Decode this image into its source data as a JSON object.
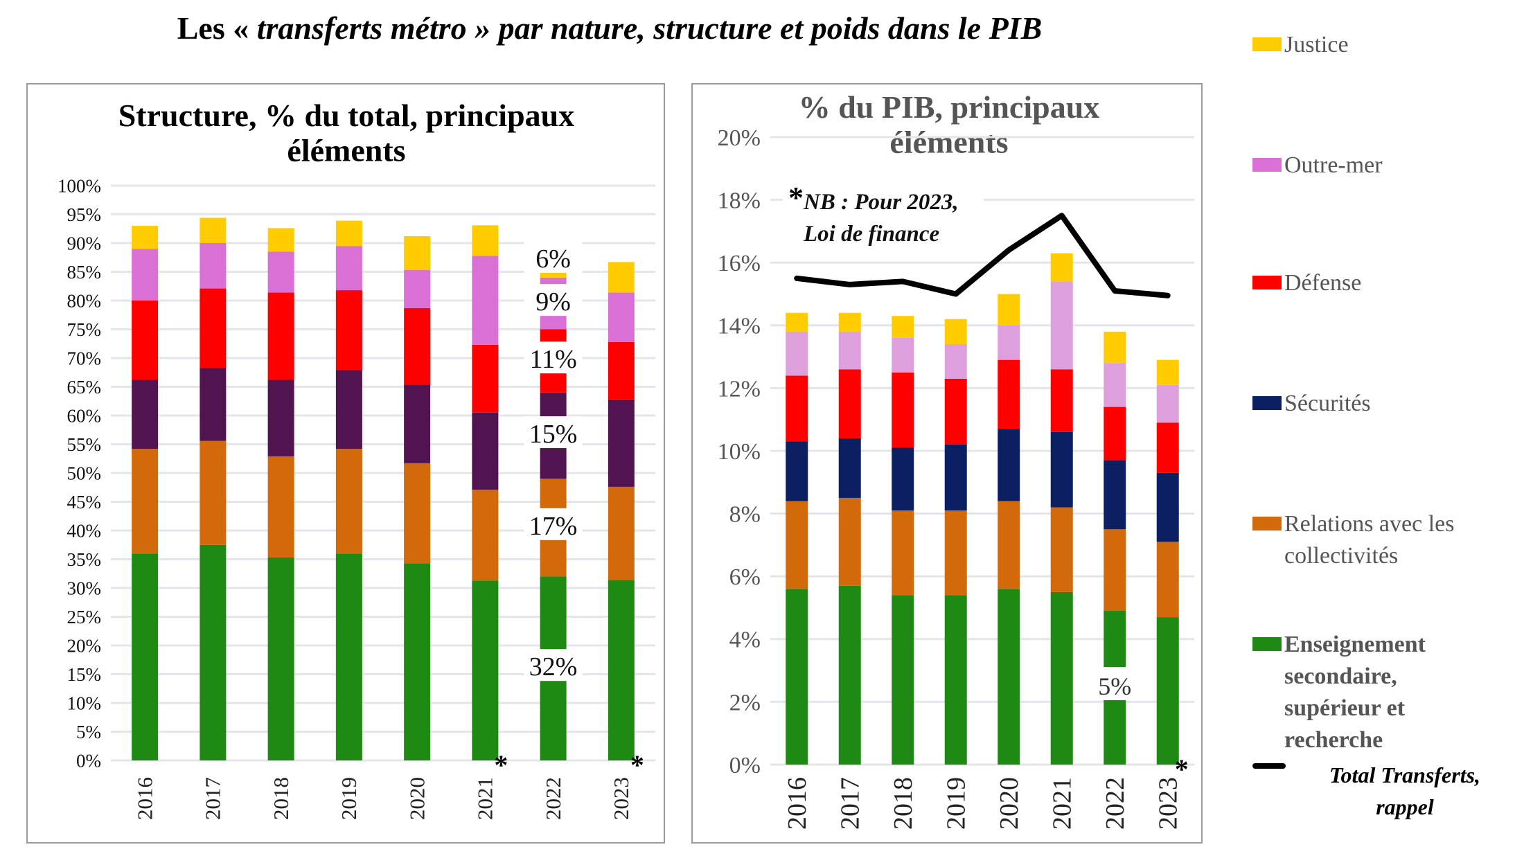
{
  "title": {
    "prefix": "Les «",
    "italic": " transferts métro ",
    "suffix": "» par nature, structure et poids dans le PIB"
  },
  "legend": {
    "items": [
      {
        "key": "justice",
        "label": "Justice",
        "color": "#FFCC00"
      },
      {
        "key": "outremer",
        "label": "Outre-mer",
        "color": "#DA70D6"
      },
      {
        "key": "defense",
        "label": "Défense",
        "color": "#FF0000"
      },
      {
        "key": "securites",
        "label": "Sécurités",
        "color": "#0D1F63"
      },
      {
        "key": "relations",
        "label": "Relations avec les collectivités",
        "color": "#D2690A"
      },
      {
        "key": "enseignement",
        "label": "Enseignement secondaire, supérieur et recherche",
        "color": "#1F8A13"
      }
    ],
    "total_label": "Total Transferts, rappel"
  },
  "chart_data": [
    {
      "type": "bar",
      "stacked": true,
      "title": "Structure, % du total, principaux éléments",
      "categories": [
        "2016",
        "2017",
        "2018",
        "2019",
        "2020",
        "2021",
        "2022",
        "2023"
      ],
      "category_markers": {
        "2021": "*",
        "2023": "*"
      },
      "ylim": [
        0,
        100
      ],
      "yticks": [
        "0%",
        "5%",
        "10%",
        "15%",
        "20%",
        "25%",
        "30%",
        "35%",
        "40%",
        "45%",
        "50%",
        "55%",
        "60%",
        "65%",
        "70%",
        "75%",
        "80%",
        "85%",
        "90%",
        "95%",
        "100%"
      ],
      "grid": true,
      "series_colors_note": "Sécurités shown in dark purple in this panel",
      "series": [
        {
          "name": "Enseignement secondaire, supérieur et recherche",
          "color": "#1F8A13",
          "values": [
            36.0,
            37.5,
            35.3,
            36.0,
            34.3,
            31.3,
            32.0,
            31.4
          ]
        },
        {
          "name": "Relations avec les collectivités",
          "color": "#D2690A",
          "values": [
            18.2,
            18.1,
            17.6,
            18.2,
            17.4,
            15.8,
            17.0,
            16.2
          ]
        },
        {
          "name": "Sécurités",
          "color": "#521450",
          "values": [
            12.0,
            12.7,
            13.3,
            13.7,
            13.7,
            13.4,
            15.0,
            15.2
          ]
        },
        {
          "name": "Défense",
          "color": "#FF0000",
          "values": [
            13.8,
            13.8,
            15.2,
            13.9,
            13.3,
            11.8,
            11.0,
            10.0
          ]
        },
        {
          "name": "Outre-mer",
          "color": "#DA70D6",
          "values": [
            9.0,
            7.9,
            7.1,
            7.7,
            6.6,
            15.5,
            9.0,
            8.6
          ]
        },
        {
          "name": "Justice",
          "color": "#FFCC00",
          "values": [
            4.0,
            4.4,
            4.1,
            4.4,
            5.9,
            5.3,
            6.0,
            5.3
          ]
        }
      ],
      "data_labels": {
        "category": "2022",
        "labels": [
          "32%",
          "17%",
          "15%",
          "11%",
          "9%",
          "6%"
        ]
      }
    },
    {
      "type": "bar",
      "stacked": true,
      "title": "% du PIB, principaux éléments",
      "categories": [
        "2016",
        "2017",
        "2018",
        "2019",
        "2020",
        "2021",
        "2022",
        "2023"
      ],
      "category_markers": {
        "2023": "*"
      },
      "ylim": [
        0,
        20
      ],
      "yticks": [
        "0%",
        "2%",
        "4%",
        "6%",
        "8%",
        "10%",
        "12%",
        "14%",
        "16%",
        "18%",
        "20%"
      ],
      "grid": true,
      "series": [
        {
          "name": "Enseignement secondaire, supérieur et recherche",
          "color": "#1F8A13",
          "values": [
            5.6,
            5.7,
            5.4,
            5.4,
            5.6,
            5.5,
            4.9,
            4.7
          ]
        },
        {
          "name": "Relations avec les collectivités",
          "color": "#D2690A",
          "values": [
            2.8,
            2.8,
            2.7,
            2.7,
            2.8,
            2.7,
            2.6,
            2.4
          ]
        },
        {
          "name": "Sécurités",
          "color": "#0D1F63",
          "values": [
            1.9,
            1.9,
            2.0,
            2.1,
            2.3,
            2.4,
            2.2,
            2.2
          ]
        },
        {
          "name": "Défense",
          "color": "#FF0000",
          "values": [
            2.1,
            2.2,
            2.4,
            2.1,
            2.2,
            2.0,
            1.7,
            1.6
          ]
        },
        {
          "name": "Outre-mer",
          "color": "#DDA0DD",
          "values": [
            1.4,
            1.2,
            1.1,
            1.1,
            1.1,
            2.8,
            1.4,
            1.2
          ]
        },
        {
          "name": "Justice",
          "color": "#FFCC00",
          "values": [
            0.6,
            0.6,
            0.7,
            0.8,
            1.0,
            0.9,
            1.0,
            0.8
          ]
        }
      ],
      "line": {
        "name": "Total Transferts, rappel",
        "color": "#000000",
        "values": [
          15.5,
          15.3,
          15.4,
          15.0,
          16.4,
          17.5,
          15.1,
          14.95
        ]
      },
      "data_labels": {
        "category": "2022",
        "labels": [
          "5%"
        ]
      },
      "annotation": {
        "marker": "*",
        "line1": "NB : Pour 2023,",
        "line2": "Loi de finance"
      }
    }
  ]
}
